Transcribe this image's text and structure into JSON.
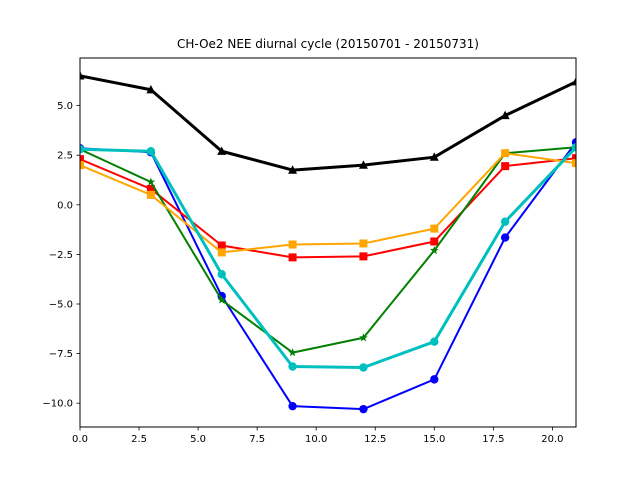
{
  "chart_data": {
    "type": "line",
    "title": "CH-Oe2 NEE diurnal cycle (20150701 - 20150731)",
    "xlabel": "",
    "ylabel": "",
    "xlim": [
      0,
      21
    ],
    "ylim": [
      -11.2,
      7.4
    ],
    "x_ticks": [
      0.0,
      2.5,
      5.0,
      7.5,
      10.0,
      12.5,
      15.0,
      17.5,
      20.0
    ],
    "y_ticks": [
      -10.0,
      -7.5,
      -5.0,
      -2.5,
      0.0,
      2.5,
      5.0
    ],
    "grid": false,
    "legend": "none",
    "x": [
      0,
      3,
      6,
      9,
      12,
      15,
      18,
      21
    ],
    "series": [
      {
        "color": "#000000",
        "marker": "triangle",
        "linewidth": 3,
        "values": [
          6.5,
          5.8,
          2.7,
          1.75,
          2.0,
          2.4,
          4.5,
          6.2
        ]
      },
      {
        "color": "#0000ff",
        "marker": "circle",
        "linewidth": 2,
        "values": [
          2.85,
          2.65,
          -4.6,
          -10.15,
          -10.3,
          -8.8,
          -1.65,
          3.15
        ]
      },
      {
        "color": "#ff0000",
        "marker": "square",
        "linewidth": 2,
        "values": [
          2.3,
          0.8,
          -2.05,
          -2.65,
          -2.6,
          -1.85,
          1.95,
          2.35
        ]
      },
      {
        "color": "#008000",
        "marker": "star",
        "linewidth": 2,
        "values": [
          2.8,
          1.15,
          -4.8,
          -7.45,
          -6.7,
          -2.3,
          2.6,
          2.9
        ]
      },
      {
        "color": "#ffa500",
        "marker": "square",
        "linewidth": 2,
        "values": [
          2.0,
          0.5,
          -2.4,
          -2.0,
          -1.95,
          -1.2,
          2.6,
          2.1
        ]
      },
      {
        "color": "#00bfbf",
        "marker": "circle",
        "linewidth": 3,
        "values": [
          2.8,
          2.7,
          -3.5,
          -8.15,
          -8.2,
          -6.9,
          -0.85,
          2.9
        ]
      }
    ]
  }
}
